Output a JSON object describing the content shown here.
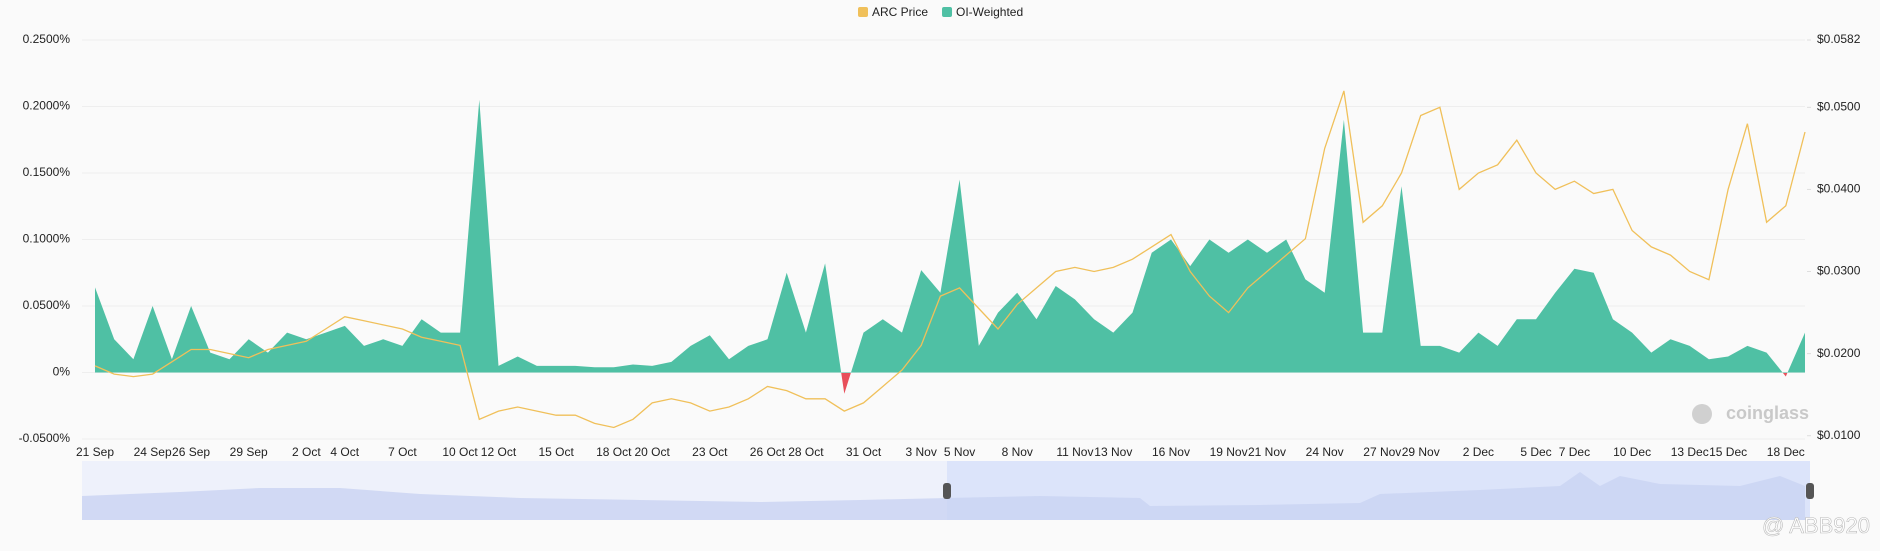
{
  "chart_data": {
    "type": "area-line",
    "categories": [
      "21 Sep",
      null,
      null,
      "24 Sep",
      null,
      "26 Sep",
      null,
      null,
      "29 Sep",
      null,
      null,
      "2 Oct",
      null,
      "4 Oct",
      null,
      null,
      "7 Oct",
      null,
      null,
      "10 Oct",
      null,
      "12 Oct",
      null,
      null,
      "15 Oct",
      null,
      null,
      "18 Oct",
      null,
      "20 Oct",
      null,
      null,
      "23 Oct",
      null,
      null,
      "26 Oct",
      null,
      "28 Oct",
      null,
      null,
      "31 Oct",
      null,
      null,
      "3 Nov",
      null,
      "5 Nov",
      null,
      null,
      "8 Nov",
      null,
      null,
      "11 Nov",
      null,
      "13 Nov",
      null,
      null,
      "16 Nov",
      null,
      null,
      "19 Nov",
      null,
      "21 Nov",
      null,
      null,
      "24 Nov",
      null,
      null,
      "27 Nov",
      null,
      "29 Nov",
      null,
      null,
      "2 Dec",
      null,
      null,
      "5 Dec",
      null,
      "7 Dec",
      null,
      null,
      "10 Dec",
      null,
      null,
      "13 Dec",
      null,
      "15 Dec",
      null,
      null,
      "18 Dec",
      null
    ],
    "series": [
      {
        "name": "ARC Price",
        "color": "#f0c05a",
        "axis": "y2",
        "values": [
          0.0185,
          0.0175,
          0.0172,
          0.0175,
          0.019,
          0.0205,
          0.0205,
          0.02,
          0.0195,
          0.0205,
          0.021,
          0.0215,
          0.023,
          0.0245,
          0.024,
          0.0235,
          0.023,
          0.022,
          0.0215,
          0.021,
          0.012,
          0.013,
          0.0135,
          0.013,
          0.0125,
          0.0125,
          0.0115,
          0.011,
          0.012,
          0.014,
          0.0145,
          0.014,
          0.013,
          0.0135,
          0.0145,
          0.016,
          0.0155,
          0.0145,
          0.0145,
          0.013,
          0.014,
          0.016,
          0.018,
          0.021,
          0.027,
          0.028,
          0.0255,
          0.023,
          0.026,
          0.028,
          0.03,
          0.0305,
          0.03,
          0.0305,
          0.0315,
          0.033,
          0.0345,
          0.03,
          0.027,
          0.025,
          0.028,
          0.03,
          0.032,
          0.034,
          0.045,
          0.052,
          0.036,
          0.038,
          0.042,
          0.049,
          0.05,
          0.04,
          0.042,
          0.043,
          0.046,
          0.042,
          0.04,
          0.041,
          0.0395,
          0.04,
          0.035,
          0.033,
          0.032,
          0.03,
          0.029,
          0.04,
          0.048,
          0.036,
          0.038,
          0.047
        ]
      },
      {
        "name": "OI-Weighted",
        "color": "#4fc0a4",
        "negative_color": "#e84f5a",
        "values": [
          0.064,
          0.025,
          0.01,
          0.05,
          0.01,
          0.05,
          0.015,
          0.01,
          0.025,
          0.015,
          0.03,
          0.025,
          0.03,
          0.035,
          0.02,
          0.025,
          0.02,
          0.04,
          0.03,
          0.03,
          0.205,
          0.005,
          0.012,
          0.005,
          0.005,
          0.005,
          0.004,
          0.004,
          0.006,
          0.005,
          0.008,
          0.02,
          0.028,
          0.01,
          0.02,
          0.025,
          0.075,
          0.03,
          0.082,
          -0.016,
          0.03,
          0.04,
          0.03,
          0.077,
          0.06,
          0.145,
          0.02,
          0.045,
          0.06,
          0.04,
          0.065,
          0.055,
          0.04,
          0.03,
          0.045,
          0.09,
          0.1,
          0.08,
          0.1,
          0.09,
          0.1,
          0.09,
          0.1,
          0.07,
          0.06,
          0.19,
          0.03,
          0.03,
          0.14,
          0.02,
          0.02,
          0.015,
          0.03,
          0.02,
          0.04,
          0.04,
          0.06,
          0.078,
          0.075,
          0.04,
          0.03,
          0.015,
          0.025,
          0.02,
          0.01,
          0.012,
          0.02,
          0.015,
          -0.003,
          0.03
        ]
      }
    ],
    "ylim": [
      -0.05,
      0.25
    ],
    "yticks": [
      {
        "value": 0.25,
        "label": "0.2500%"
      },
      {
        "value": 0.2,
        "label": "0.2000%"
      },
      {
        "value": 0.15,
        "label": "0.1500%"
      },
      {
        "value": 0.1,
        "label": "0.1000%"
      },
      {
        "value": 0.05,
        "label": "0.0500%"
      },
      {
        "value": 0,
        "label": "0%"
      },
      {
        "value": -0.05,
        "label": "-0.0500%"
      }
    ],
    "y2lim": [
      0.0096,
      0.0582
    ],
    "y2ticks": [
      {
        "value": 0.0582,
        "label": "$0.0582"
      },
      {
        "value": 0.05,
        "label": "$0.0500"
      },
      {
        "value": 0.04,
        "label": "$0.0400"
      },
      {
        "value": 0.03,
        "label": "$0.0300"
      },
      {
        "value": 0.02,
        "label": "$0.0200"
      },
      {
        "value": 0.01,
        "label": "$0.0100"
      }
    ],
    "grid": true,
    "legend": "top",
    "watermarks": [
      "coinglass",
      "@ ABB920"
    ]
  }
}
